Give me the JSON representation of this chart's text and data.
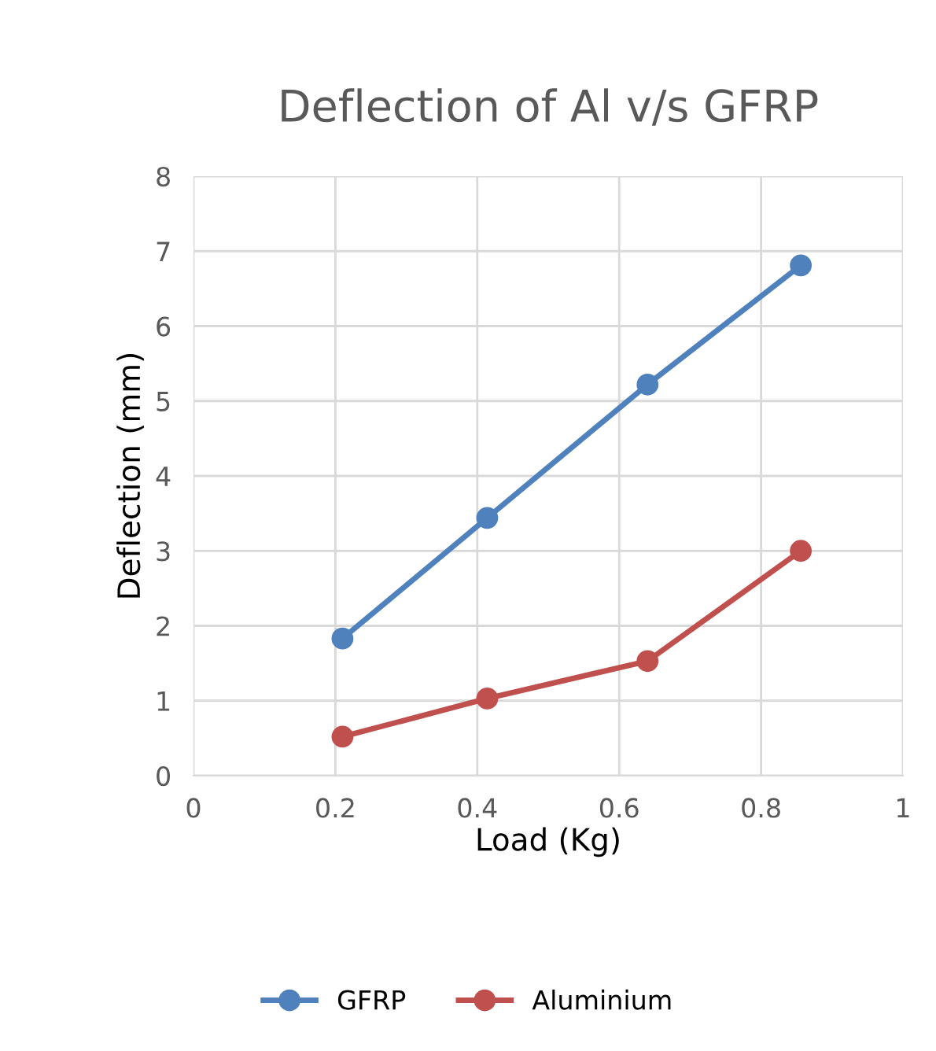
{
  "chart_data": {
    "type": "line",
    "title": "Deflection of Al v/s GFRP",
    "xlabel": "Load (Kg)",
    "ylabel": "Deflection (mm)",
    "x": [
      0.21,
      0.414,
      0.64,
      0.856
    ],
    "series": [
      {
        "name": "GFRP",
        "color": "#4f81bd",
        "values": [
          1.83,
          3.44,
          5.22,
          6.81
        ]
      },
      {
        "name": "Aluminium",
        "color": "#c0504d",
        "values": [
          0.52,
          1.03,
          1.53,
          3.0
        ]
      }
    ],
    "xlim": [
      0,
      1
    ],
    "xticks": [
      0,
      0.2,
      0.4,
      0.6,
      0.8,
      1
    ],
    "ylim": [
      0,
      8
    ],
    "yticks": [
      0,
      1,
      2,
      3,
      4,
      5,
      6,
      7,
      8
    ],
    "grid": true,
    "legend": "bottom",
    "marker": "circle",
    "line_style": "solid"
  }
}
